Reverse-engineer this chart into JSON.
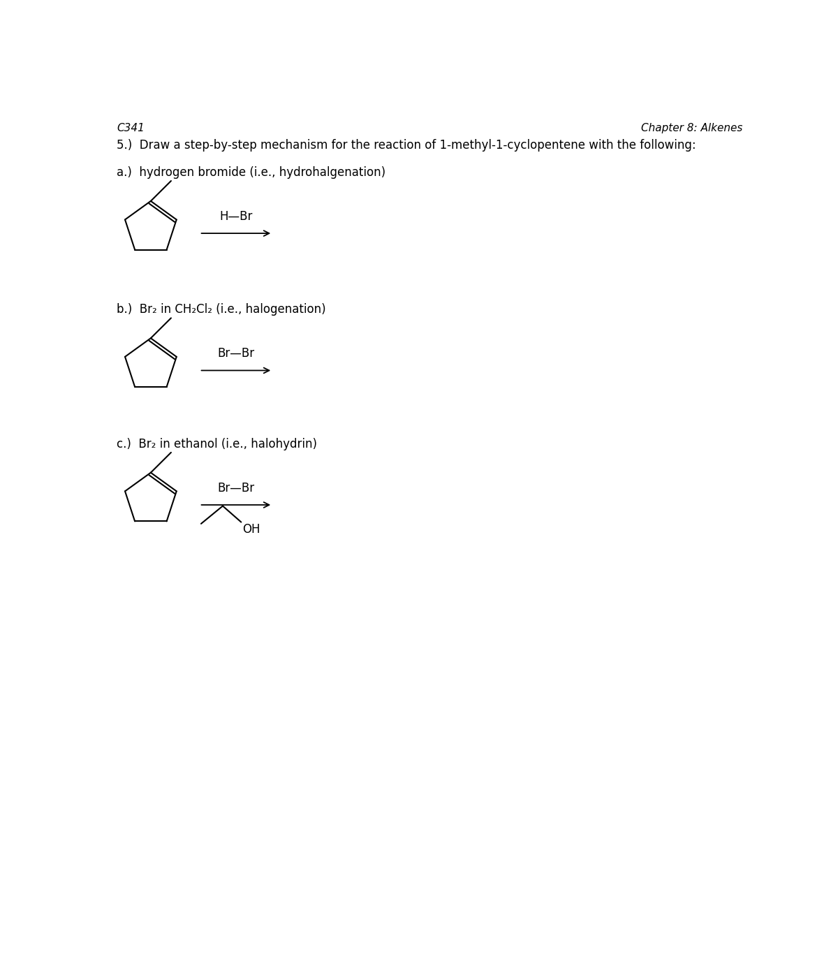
{
  "title_left": "C341",
  "title_right": "Chapter 8: Alkenes",
  "main_question": "5.)  Draw a step-by-step mechanism for the reaction of 1-methyl-1-cyclopentene with the following:",
  "section_a_label": "a.)  hydrogen bromide (i.e., hydrohalgenation)",
  "section_b_label_parts": [
    "b.)  Br",
    "2",
    " in CH",
    "2",
    "Cl",
    "2",
    " (i.e., halogenation)"
  ],
  "section_c_label_parts": [
    "c.)  Br",
    "2",
    " in ethanol (i.e., halohydrin)"
  ],
  "reagent_a": "H—Br",
  "reagent_b": "Br—Br",
  "reagent_c": "Br—Br",
  "bg_color": "#ffffff",
  "text_color": "#000000",
  "font_size_header": 11,
  "font_size_main": 12,
  "font_size_section": 12,
  "font_size_reagent": 12
}
